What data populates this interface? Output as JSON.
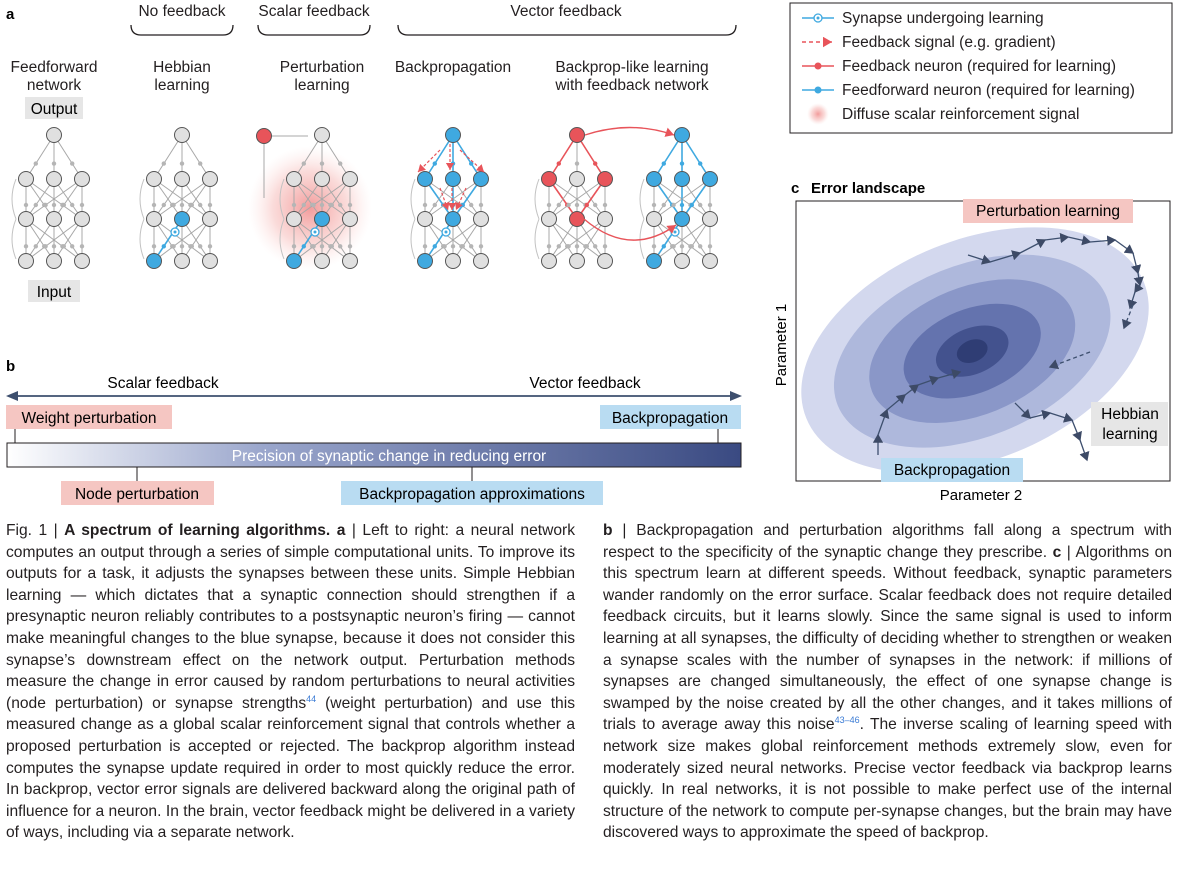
{
  "panel_a": {
    "label": "a",
    "groups": {
      "no_feedback": "No feedback",
      "scalar_feedback": "Scalar feedback",
      "vector_feedback": "Vector feedback"
    },
    "columns": {
      "feedforward": [
        "Feedforward",
        "network"
      ],
      "hebbian": [
        "Hebbian",
        "learning"
      ],
      "perturbation": [
        "Perturbation",
        "learning"
      ],
      "backprop": [
        "Backpropagation"
      ],
      "backprop_like": [
        "Backprop-like learning",
        "with feedback network"
      ]
    },
    "output_label": "Output",
    "input_label": "Input"
  },
  "legend": {
    "synapse": "Synapse undergoing learning",
    "feedback_signal": "Feedback signal (e.g. gradient)",
    "feedback_neuron": "Feedback neuron (required for learning)",
    "feedforward_neuron": "Feedforward neuron (required for learning)",
    "diffuse": "Diffuse scalar reinforcement signal"
  },
  "panel_b": {
    "label": "b",
    "scalar_feedback": "Scalar feedback",
    "vector_feedback": "Vector feedback",
    "weight_perturbation": "Weight perturbation",
    "backpropagation": "Backpropagation",
    "bar_label": "Precision of synaptic change in reducing error",
    "node_perturbation": "Node perturbation",
    "backprop_approximations": "Backpropagation approximations"
  },
  "panel_c": {
    "label": "c",
    "title": "Error landscape",
    "perturbation_learning": "Perturbation learning",
    "hebbian_learning": [
      "Hebbian",
      "learning"
    ],
    "backpropagation": "Backpropagation",
    "ylabel": "Parameter 1",
    "xlabel": "Parameter 2"
  },
  "colors": {
    "blue": "#3fa9e0",
    "red": "#e8545a",
    "grey_node": "#e0e0e0",
    "pink_box": "#f5c6c2",
    "blue_box": "#b9dcf2",
    "grey_box": "#e6e6e6",
    "dark_blue": "#3d4f86"
  },
  "caption": {
    "left": {
      "fig": "Fig. 1 | ",
      "title": "A spectrum of learning algorithms.",
      "a": " a",
      "sep": " | ",
      "text1": "Left to right: a neural network computes an output through a series of simple computational units. To improve its outputs for a task, it adjusts the synapses between these units. Simple Hebbian learning — which dictates that a synaptic connection should strengthen if a presynaptic neuron reliably contributes to a postsynaptic neuron’s firing — cannot make meaningful changes to the blue synapse, because it does not consider this synapse’s downstream effect on the network output. Perturbation methods measure the change in error caused by random perturbations to neural activities (node perturbation) or synapse strengths",
      "ref1": "44",
      "text2": " (weight perturbation) and use this measured change as a global scalar reinforcement signal that controls whether a proposed perturbation is accepted or rejected. The backprop algorithm instead computes the synapse update required in order to most quickly reduce the error. In backprop, vector error signals are delivered backward along the original path of influence for a neuron. In the brain, vector feedback might be delivered in a variety of ways, including via a separate network."
    },
    "right": {
      "b": "b",
      "sep": " | ",
      "text1": "Backpropagation and perturbation algorithms fall along a spectrum with respect to the specificity of the synaptic change they prescribe.",
      "c": " c",
      "sep2": " | ",
      "text2": "Algorithms on this spectrum learn at different speeds. Without feedback, synaptic parameters wander randomly on the error surface. Scalar feedback does not require detailed feedback circuits, but it learns slowly. Since the same signal is used to inform learning at all synapses, the difficulty of deciding whether to strengthen or weaken a synapse scales with the number of synapses in the network: if millions of synapses are changed simultaneously, the effect of one synapse change is swamped by the noise created by all the other changes, and it takes millions of trials to average away this noise",
      "ref": "43–46",
      "text3": ". The inverse scaling of learning speed with network size makes global reinforcement methods extremely slow, even for moderately sized neural networks. Precise vector feedback via backprop learns quickly. In real networks, it is not possible to make perfect use of the internal structure of the network to compute per-synapse changes, but the brain may have discovered ways to approximate the speed of backprop."
    }
  }
}
